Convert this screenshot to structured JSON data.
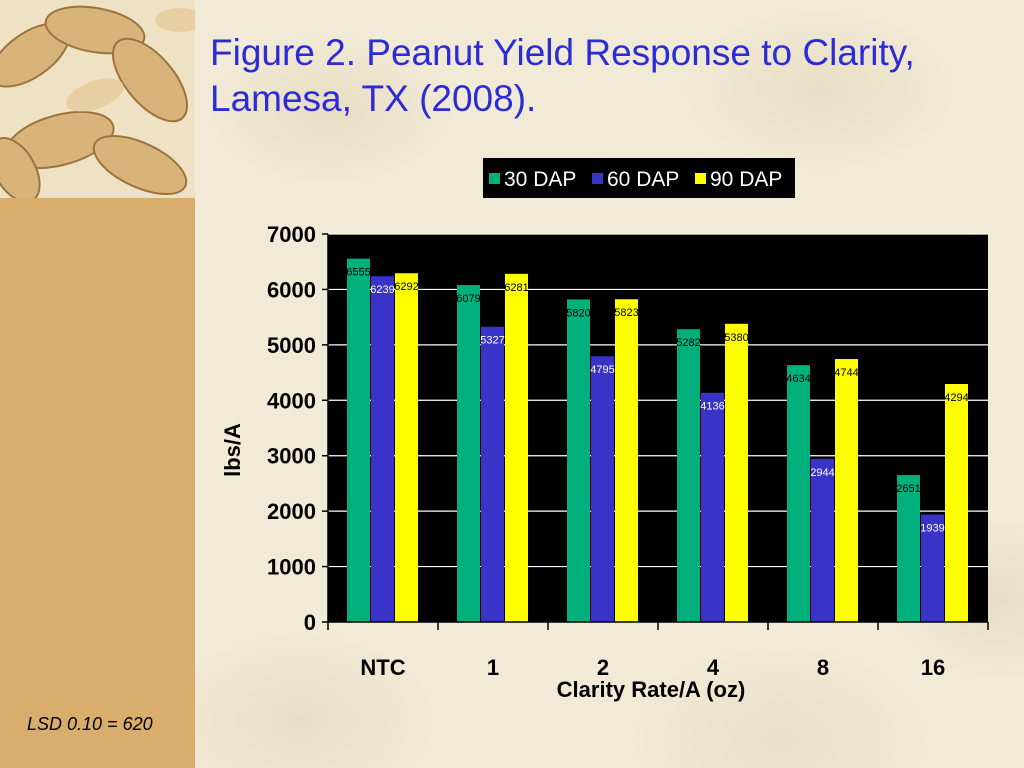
{
  "slide": {
    "title": "Figure 2.  Peanut Yield Response to Clarity, Lamesa, TX (2008).",
    "footnote": "LSD 0.10 = 620"
  },
  "colors": {
    "series_30": "#00b07c",
    "series_60": "#3a33c8",
    "series_90": "#ffff00",
    "title": "#2b2bd8",
    "sidebar": "#d9ad6c",
    "plot_bg": "#000000"
  },
  "chart_data": {
    "type": "bar",
    "title": "",
    "xlabel": "Clarity Rate/A (oz)",
    "ylabel": "lbs/A",
    "categories": [
      "NTC",
      "1",
      "2",
      "4",
      "8",
      "16"
    ],
    "ylim": [
      0,
      7000
    ],
    "yticks": [
      0,
      1000,
      2000,
      3000,
      4000,
      5000,
      6000,
      7000
    ],
    "grid": true,
    "legend_position": "top",
    "series": [
      {
        "name": "30 DAP",
        "values": [
          6555,
          6079,
          5820,
          5282,
          4634,
          2651
        ]
      },
      {
        "name": "60 DAP",
        "values": [
          6239,
          5327,
          4795,
          4136,
          2944,
          1939
        ]
      },
      {
        "name": "90 DAP",
        "values": [
          6292,
          6281,
          5823,
          5380,
          4744,
          4294
        ]
      }
    ]
  }
}
